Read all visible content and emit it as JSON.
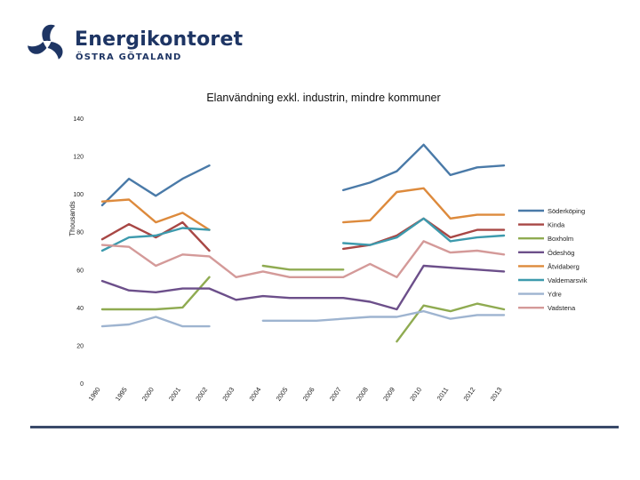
{
  "brand": {
    "name": "Energikontoret",
    "subtitle": "ÖSTRA GÖTALAND",
    "color": "#1e3564"
  },
  "chart_data": {
    "type": "line",
    "title": "Elanvändning exkl. industrin, mindre kommuner",
    "ylabel": "Thousands",
    "xlabel": "",
    "ylim": [
      0,
      140
    ],
    "yticks": [
      0,
      20,
      40,
      60,
      80,
      100,
      120,
      140
    ],
    "grid": false,
    "legend_position": "right",
    "categories": [
      "1990",
      "1995",
      "2000",
      "2001",
      "2002",
      "2003",
      "2004",
      "2005",
      "2006",
      "2007",
      "2008",
      "2009",
      "2010",
      "2011",
      "2012",
      "2013"
    ],
    "series": [
      {
        "name": "Söderköping",
        "color": "#4a7aa8",
        "values": [
          94,
          108,
          99,
          108,
          115,
          null,
          null,
          null,
          null,
          102,
          106,
          112,
          126,
          110,
          114,
          115
        ]
      },
      {
        "name": "Kinda",
        "color": "#a84745",
        "values": [
          76,
          84,
          77,
          85,
          70,
          null,
          null,
          null,
          null,
          71,
          73,
          78,
          87,
          77,
          81,
          81
        ]
      },
      {
        "name": "Boxholm",
        "color": "#8fab51",
        "values": [
          39,
          39,
          39,
          40,
          56,
          null,
          62,
          60,
          60,
          60,
          null,
          22,
          41,
          38,
          42,
          39
        ]
      },
      {
        "name": "Ödeshög",
        "color": "#6c4f8a",
        "values": [
          54,
          49,
          48,
          50,
          50,
          44,
          46,
          45,
          45,
          45,
          43,
          39,
          62,
          61,
          60,
          59
        ]
      },
      {
        "name": "Åtvidaberg",
        "color": "#dd8a3c",
        "values": [
          96,
          97,
          85,
          90,
          81,
          null,
          null,
          null,
          null,
          85,
          86,
          101,
          103,
          87,
          89,
          89
        ]
      },
      {
        "name": "Valdemarsvik",
        "color": "#3d9aad",
        "values": [
          70,
          77,
          78,
          82,
          81,
          null,
          null,
          null,
          null,
          74,
          73,
          77,
          87,
          75,
          77,
          78
        ]
      },
      {
        "name": "Ydre",
        "color": "#9eb4d0",
        "values": [
          30,
          31,
          35,
          30,
          30,
          null,
          33,
          33,
          33,
          34,
          35,
          35,
          38,
          34,
          36,
          36
        ]
      },
      {
        "name": "Vadstena",
        "color": "#d49a99",
        "values": [
          73,
          72,
          62,
          68,
          67,
          56,
          59,
          56,
          56,
          56,
          63,
          56,
          75,
          69,
          70,
          68
        ]
      }
    ]
  }
}
